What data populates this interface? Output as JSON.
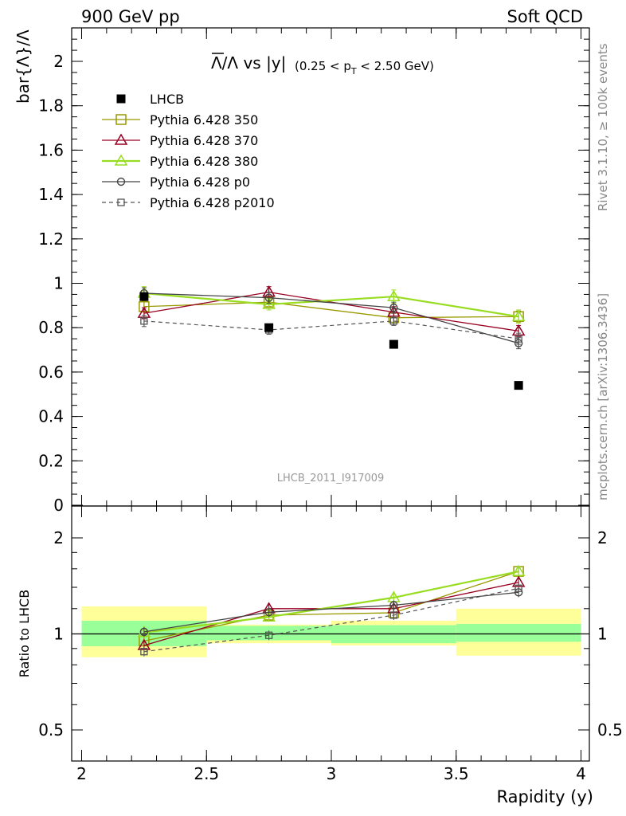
{
  "header": {
    "left": "900 GeV pp",
    "right": "Soft QCD"
  },
  "side_text": {
    "rivet": "Rivet 3.1.10, ≥ 100k events",
    "mcplots": "mcplots.cern.ch [arXiv:1306.3436]"
  },
  "watermark": "LHCB_2011_I917009",
  "colors": {
    "lhcb": "#000000",
    "py350": "#999900",
    "py370": "#990022",
    "py380": "#99dd22",
    "p0": "#444444",
    "p2010": "#555555",
    "band_inner": "#99ff99",
    "band_outer": "#ffff99"
  },
  "chart_data": [
    {
      "type": "scatter",
      "panel": "main",
      "title": "Λ̄/Λ vs |y|(0.25 < pT < 2.50 GeV)",
      "ylabel": "bar{Λ}/Λ",
      "xlim": [
        2,
        4
      ],
      "ylim": [
        0,
        2.15
      ],
      "x_ticks": [
        2,
        2.5,
        3,
        3.5,
        4
      ],
      "y_ticks": [
        0,
        0.2,
        0.4,
        0.6,
        0.8,
        1,
        1.2,
        1.4,
        1.6,
        1.8,
        2
      ],
      "y_tick_labels": [
        "0",
        "0.2",
        "0.4",
        "0.6",
        "0.8",
        "1",
        "1.2",
        "1.4",
        "1.6",
        "1.8",
        "2"
      ],
      "series": [
        {
          "name": "LHCB",
          "style": "data",
          "x": [
            2.25,
            2.75,
            3.25,
            3.75
          ],
          "y": [
            0.94,
            0.8,
            0.725,
            0.54
          ],
          "err": [
            0.01,
            0.01,
            0.01,
            0.01
          ]
        },
        {
          "name": "Pythia 6.428 350",
          "style": "square",
          "x": [
            2.25,
            2.75,
            3.25,
            3.75
          ],
          "y": [
            0.895,
            0.915,
            0.845,
            0.85
          ],
          "err": [
            0.025,
            0.02,
            0.02,
            0.025
          ]
        },
        {
          "name": "Pythia 6.428 370",
          "style": "triangle",
          "x": [
            2.25,
            2.75,
            3.25,
            3.75
          ],
          "y": [
            0.865,
            0.96,
            0.87,
            0.785
          ],
          "err": [
            0.025,
            0.025,
            0.025,
            0.025
          ]
        },
        {
          "name": "Pythia 6.428 380",
          "style": "triangle",
          "x": [
            2.25,
            2.75,
            3.25,
            3.75
          ],
          "y": [
            0.955,
            0.905,
            0.94,
            0.85
          ],
          "err": [
            0.03,
            0.025,
            0.03,
            0.03
          ]
        },
        {
          "name": "Pythia 6.428 p0",
          "style": "circle",
          "x": [
            2.25,
            2.75,
            3.25,
            3.75
          ],
          "y": [
            0.955,
            0.935,
            0.89,
            0.73
          ],
          "err": [
            0.025,
            0.025,
            0.025,
            0.025
          ]
        },
        {
          "name": "Pythia 6.428 p2010",
          "style": "dashed-square",
          "x": [
            2.25,
            2.75,
            3.25,
            3.75
          ],
          "y": [
            0.83,
            0.79,
            0.83,
            0.75
          ],
          "err": [
            0.025,
            0.02,
            0.02,
            0.025
          ]
        }
      ]
    },
    {
      "type": "line",
      "panel": "ratio",
      "ylabel": "Ratio to LHCB",
      "xlabel": "Rapidity (y)",
      "xlim": [
        2,
        4
      ],
      "ylim": [
        0.4,
        2.3
      ],
      "log_y": true,
      "x_tick_labels": [
        "2",
        "2.5",
        "3",
        "3.5",
        "4"
      ],
      "y_ticks": [
        0.5,
        1,
        2
      ],
      "y_tick_labels": [
        "0.5",
        "1",
        "2"
      ],
      "bands": {
        "x_edges": [
          2.0,
          2.5,
          3.0,
          3.5,
          4.0
        ],
        "inner": [
          [
            0.915,
            1.1
          ],
          [
            0.955,
            1.06
          ],
          [
            0.935,
            1.065
          ],
          [
            0.945,
            1.075
          ]
        ],
        "outer": [
          [
            0.845,
            1.22
          ],
          [
            0.935,
            1.07
          ],
          [
            0.92,
            1.1
          ],
          [
            0.855,
            1.2
          ]
        ]
      },
      "series": [
        {
          "name": "Pythia 6.428 350",
          "x": [
            2.25,
            2.75,
            3.25,
            3.75
          ],
          "y": [
            0.95,
            1.145,
            1.165,
            1.57
          ]
        },
        {
          "name": "Pythia 6.428 370",
          "x": [
            2.25,
            2.75,
            3.25,
            3.75
          ],
          "y": [
            0.92,
            1.2,
            1.2,
            1.45
          ]
        },
        {
          "name": "Pythia 6.428 380",
          "x": [
            2.25,
            2.75,
            3.25,
            3.75
          ],
          "y": [
            1.01,
            1.13,
            1.3,
            1.57
          ]
        },
        {
          "name": "Pythia 6.428 p0",
          "x": [
            2.25,
            2.75,
            3.25,
            3.75
          ],
          "y": [
            1.015,
            1.17,
            1.23,
            1.35
          ]
        },
        {
          "name": "Pythia 6.428 p2010",
          "x": [
            2.25,
            2.75,
            3.25,
            3.75
          ],
          "y": [
            0.88,
            0.99,
            1.145,
            1.39
          ]
        }
      ]
    }
  ]
}
